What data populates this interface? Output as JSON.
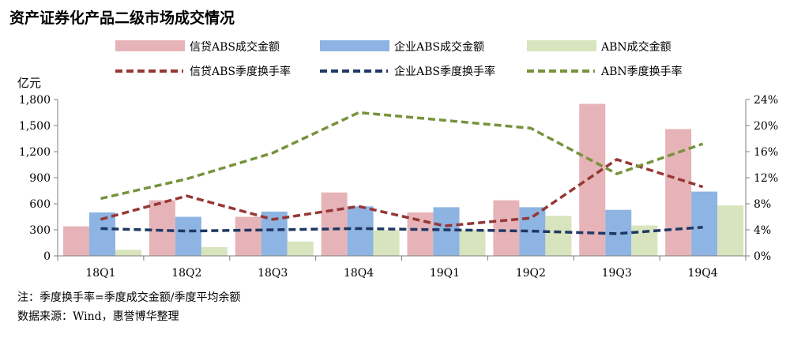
{
  "chart_data": {
    "type": "bar",
    "title": "资产证券化产品二级市场成交情况",
    "categories": [
      "18Q1",
      "18Q2",
      "18Q3",
      "18Q4",
      "19Q1",
      "19Q2",
      "19Q3",
      "19Q4"
    ],
    "y_left_unit": "亿元",
    "y_left_ticks": [
      "1,800",
      "1,500",
      "1,200",
      "900",
      "600",
      "300",
      "0"
    ],
    "y_left_range": [
      0,
      1800
    ],
    "y_right_ticks": [
      "24%",
      "20%",
      "16%",
      "12%",
      "8%",
      "4%",
      "0%"
    ],
    "y_right_range": [
      0,
      24
    ],
    "bar_series": [
      {
        "name": "信贷ABS成交金额",
        "color": "#e6b4b8",
        "values": [
          340,
          640,
          450,
          730,
          500,
          640,
          1750,
          1460
        ]
      },
      {
        "name": "企业ABS成交金额",
        "color": "#8db4e2",
        "values": [
          500,
          450,
          510,
          570,
          560,
          560,
          530,
          740
        ]
      },
      {
        "name": "ABN成交金额",
        "color": "#d7e4bd",
        "values": [
          70,
          100,
          165,
          295,
          300,
          460,
          350,
          580
        ]
      }
    ],
    "line_series": [
      {
        "name": "信贷ABS季度换手率",
        "color": "#953735",
        "values": [
          5.6,
          9.2,
          5.6,
          7.6,
          4.6,
          5.8,
          14.8,
          10.6
        ]
      },
      {
        "name": "企业ABS季度换手率",
        "color": "#1f3864",
        "values": [
          4.2,
          3.8,
          4.0,
          4.2,
          4.0,
          3.8,
          3.4,
          4.4
        ]
      },
      {
        "name": "ABN季度换手率",
        "color": "#77933c",
        "values": [
          8.8,
          11.8,
          15.8,
          22.0,
          20.8,
          19.6,
          12.6,
          17.2
        ]
      }
    ],
    "legend_position": "top",
    "grid": false
  },
  "note": "注：季度换手率=季度成交金额/季度平均余额",
  "source": "数据来源：Wind，惠誉博华整理"
}
